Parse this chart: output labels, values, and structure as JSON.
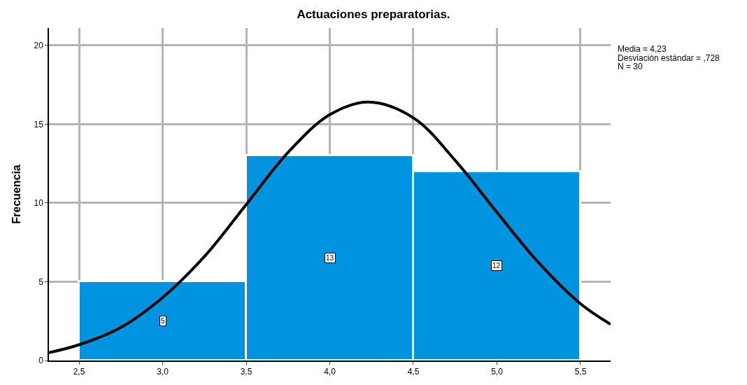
{
  "chart_data": {
    "type": "histogram",
    "title": "Actuaciones preparatorias.",
    "ylabel": "Frecuencia",
    "bins": [
      2.5,
      3.5,
      4.5,
      5.5
    ],
    "values": [
      5,
      13,
      12
    ],
    "color": "#0093e0",
    "value_labels": [
      "5",
      "13",
      "12"
    ],
    "series": [
      {
        "type": "line",
        "color": "#000000",
        "x": [
          2.32,
          2.5,
          2.75,
          3.0,
          3.25,
          3.5,
          3.75,
          4.0,
          4.23,
          4.5,
          4.75,
          5.0,
          5.25,
          5.5,
          5.68
        ],
        "values": [
          0.5,
          1.0,
          2.1,
          4.0,
          6.6,
          9.9,
          13.2,
          15.6,
          16.4,
          15.4,
          12.7,
          9.4,
          6.2,
          3.6,
          2.3
        ]
      }
    ],
    "annotations": [
      "Media = 4,23",
      "Desviación estándar = ,728",
      "N = 30"
    ],
    "xlim": [
      2.32,
      5.68
    ],
    "ylim": [
      0,
      21.1
    ],
    "xticks": [
      {
        "value": 2.5,
        "label": "2,5"
      },
      {
        "value": 3.0,
        "label": "3,0"
      },
      {
        "value": 3.5,
        "label": "3,5"
      },
      {
        "value": 4.0,
        "label": "4,0"
      },
      {
        "value": 4.5,
        "label": "4,5"
      },
      {
        "value": 5.0,
        "label": "5,0"
      },
      {
        "value": 5.5,
        "label": "5,5"
      }
    ],
    "yticks": [
      0,
      5,
      10,
      15,
      20
    ],
    "grid": true
  }
}
